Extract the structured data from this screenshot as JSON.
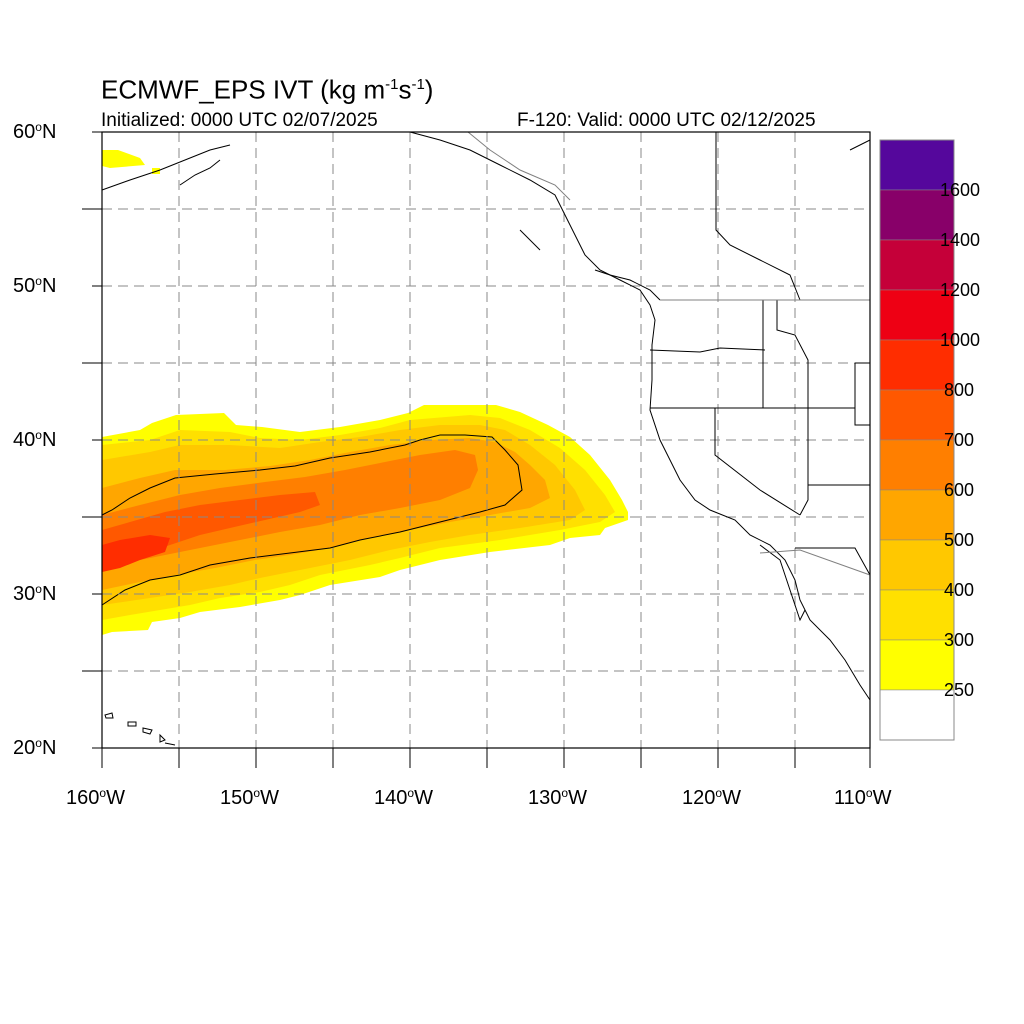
{
  "map": {
    "title_main": "ECMWF_EPS IVT (kg m",
    "title_sup1": "-1",
    "title_mid": "s",
    "title_sup2": "-1",
    "title_end": ")",
    "init_text": "Initialized: 0000 UTC 02/07/2025",
    "valid_text": "F-120: Valid: 0000 UTC 02/12/2025",
    "lat_labels": [
      {
        "num": "60",
        "dir": "N"
      },
      {
        "num": "50",
        "dir": "N"
      },
      {
        "num": "40",
        "dir": "N"
      },
      {
        "num": "30",
        "dir": "N"
      },
      {
        "num": "20",
        "dir": "N"
      }
    ],
    "lon_labels": [
      {
        "num": "160",
        "dir": "W"
      },
      {
        "num": "150",
        "dir": "W"
      },
      {
        "num": "140",
        "dir": "W"
      },
      {
        "num": "130",
        "dir": "W"
      },
      {
        "num": "120",
        "dir": "W"
      },
      {
        "num": "110",
        "dir": "W"
      }
    ],
    "extent": {
      "lon": [
        -160,
        -110
      ],
      "lat": [
        20,
        60
      ]
    }
  },
  "colorbar": {
    "labels": [
      "1600",
      "1400",
      "1200",
      "1000",
      "800",
      "700",
      "600",
      "500",
      "400",
      "300",
      "250"
    ],
    "colors_top_to_bottom": [
      "#55079c",
      "#880069",
      "#c50039",
      "#ee0014",
      "#ff2d00",
      "#ff5800",
      "#ff7f00",
      "#ffa600",
      "#ffc800",
      "#ffe000",
      "#ffff00",
      "#ffffff"
    ]
  },
  "legend_colors": {
    "c250": "#ffff00",
    "c300": "#ffe000",
    "c400": "#ffc800",
    "c500": "#ffa600",
    "c600": "#ff7f00",
    "c700": "#ff5800",
    "c800": "#ff2d00"
  }
}
